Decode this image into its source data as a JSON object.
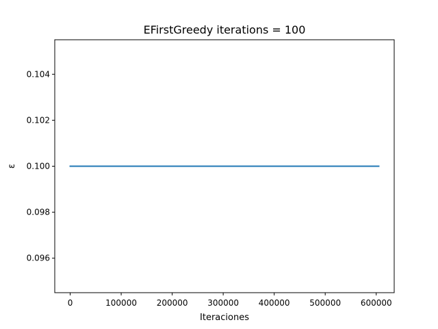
{
  "chart_data": {
    "type": "line",
    "title": "EFirstGreedy iterations = 100",
    "xlabel": "Iteraciones",
    "ylabel": "ε",
    "xlim": [
      -30250,
      635250
    ],
    "ylim": [
      0.0945,
      0.1055
    ],
    "xticks": [
      0,
      100000,
      200000,
      300000,
      400000,
      500000,
      600000
    ],
    "xtick_labels": [
      "0",
      "100000",
      "200000",
      "300000",
      "400000",
      "500000",
      "600000"
    ],
    "yticks": [
      0.096,
      0.098,
      0.1,
      0.102,
      0.104
    ],
    "ytick_labels": [
      "0.096",
      "0.098",
      "0.100",
      "0.102",
      "0.104"
    ],
    "grid": false,
    "series": [
      {
        "color": "#1f77b4",
        "x": [
          0,
          605000
        ],
        "y": [
          0.1,
          0.1
        ]
      }
    ]
  }
}
